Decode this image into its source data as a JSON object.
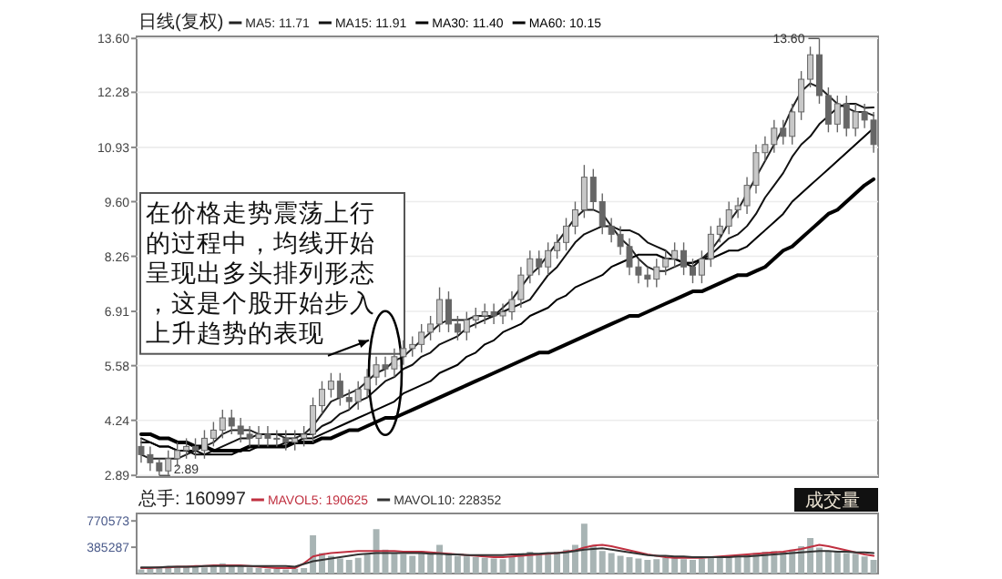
{
  "chart_data": [
    {
      "type": "candlestick",
      "title": "日线(复权)",
      "categories": [
        null,
        null,
        null,
        null,
        null,
        null,
        null,
        null,
        null,
        null,
        null,
        null,
        null,
        null,
        null,
        null,
        null,
        null,
        null,
        null,
        null,
        null,
        null,
        null,
        null,
        null,
        null,
        null,
        null,
        null,
        null,
        null,
        null,
        null,
        null,
        null,
        null,
        null,
        null,
        null,
        null,
        null,
        null,
        null,
        null,
        null,
        null,
        null,
        null,
        null,
        null,
        null,
        null,
        null,
        null,
        null,
        null,
        null,
        null,
        null,
        null,
        null,
        null,
        null,
        null,
        null,
        null,
        null,
        null,
        null,
        null,
        null,
        null,
        null,
        null,
        null,
        null,
        null,
        null,
        null,
        null,
        null
      ],
      "ylim": [
        2.85,
        13.65
      ],
      "yticks": [
        2.89,
        4.24,
        5.58,
        6.91,
        8.26,
        {
          "value": 9.6,
          "label": "9.60"
        },
        10.93,
        12.28,
        {
          "value": 13.6,
          "label": "13.60"
        }
      ],
      "grid": "y",
      "tick_labels": "y",
      "legend": "top left",
      "color": "#666666",
      "ohlc": [
        [
          3.6,
          3.8,
          3.2,
          3.4
        ],
        [
          3.4,
          3.6,
          3.0,
          3.2
        ],
        [
          3.2,
          3.3,
          2.89,
          3.0
        ],
        [
          3.0,
          3.5,
          2.9,
          3.3
        ],
        [
          3.3,
          3.7,
          3.1,
          3.5
        ],
        [
          3.5,
          3.8,
          3.3,
          3.6
        ],
        [
          3.6,
          3.8,
          3.3,
          3.5
        ],
        [
          3.5,
          4.0,
          3.3,
          3.8
        ],
        [
          3.8,
          4.2,
          3.6,
          4.0
        ],
        [
          4.0,
          4.5,
          3.8,
          4.3
        ],
        [
          4.3,
          4.5,
          3.9,
          4.1
        ],
        [
          4.1,
          4.3,
          3.7,
          3.9
        ],
        [
          3.9,
          4.1,
          3.6,
          3.8
        ],
        [
          3.8,
          4.1,
          3.6,
          3.9
        ],
        [
          3.9,
          4.1,
          3.6,
          3.8
        ],
        [
          3.8,
          4.0,
          3.6,
          3.8
        ],
        [
          3.8,
          4.0,
          3.5,
          3.7
        ],
        [
          3.7,
          4.0,
          3.5,
          3.8
        ],
        [
          3.8,
          4.1,
          3.6,
          3.9
        ],
        [
          3.9,
          4.8,
          3.7,
          4.6
        ],
        [
          4.6,
          5.2,
          4.4,
          5.0
        ],
        [
          5.0,
          5.4,
          4.8,
          5.2
        ],
        [
          5.2,
          5.4,
          4.6,
          4.8
        ],
        [
          4.8,
          5.0,
          4.5,
          4.7
        ],
        [
          4.7,
          5.2,
          4.5,
          5.0
        ],
        [
          5.0,
          5.5,
          4.8,
          5.3
        ],
        [
          5.3,
          5.8,
          5.1,
          5.6
        ],
        [
          5.6,
          5.8,
          5.3,
          5.5
        ],
        [
          5.5,
          6.0,
          5.3,
          5.8
        ],
        [
          5.8,
          6.2,
          5.6,
          6.0
        ],
        [
          6.0,
          6.3,
          5.8,
          6.1
        ],
        [
          6.1,
          6.6,
          5.9,
          6.4
        ],
        [
          6.4,
          6.8,
          6.2,
          6.6
        ],
        [
          6.6,
          7.5,
          6.4,
          7.2
        ],
        [
          7.2,
          7.4,
          6.4,
          6.6
        ],
        [
          6.6,
          6.8,
          6.2,
          6.4
        ],
        [
          6.4,
          6.9,
          6.2,
          6.7
        ],
        [
          6.7,
          7.0,
          6.5,
          6.8
        ],
        [
          6.8,
          7.1,
          6.6,
          6.9
        ],
        [
          6.9,
          7.1,
          6.6,
          6.8
        ],
        [
          6.8,
          7.1,
          6.6,
          6.9
        ],
        [
          6.9,
          7.4,
          6.7,
          7.2
        ],
        [
          7.2,
          8.0,
          7.0,
          7.8
        ],
        [
          7.8,
          8.4,
          7.6,
          8.2
        ],
        [
          8.2,
          8.4,
          7.8,
          8.0
        ],
        [
          8.0,
          8.6,
          7.8,
          8.4
        ],
        [
          8.4,
          8.8,
          8.2,
          8.6
        ],
        [
          8.6,
          9.2,
          8.4,
          9.0
        ],
        [
          9.0,
          9.6,
          8.8,
          9.4
        ],
        [
          9.4,
          10.5,
          9.2,
          10.2
        ],
        [
          10.2,
          10.4,
          9.4,
          9.6
        ],
        [
          9.6,
          9.8,
          8.8,
          9.0
        ],
        [
          9.0,
          9.2,
          8.6,
          8.8
        ],
        [
          8.8,
          9.0,
          8.3,
          8.5
        ],
        [
          8.5,
          8.7,
          7.8,
          8.0
        ],
        [
          8.0,
          8.2,
          7.6,
          7.8
        ],
        [
          7.8,
          8.0,
          7.5,
          7.7
        ],
        [
          7.7,
          8.2,
          7.5,
          8.0
        ],
        [
          8.0,
          8.4,
          7.8,
          8.2
        ],
        [
          8.2,
          8.6,
          8.0,
          8.4
        ],
        [
          8.4,
          8.6,
          7.8,
          8.0
        ],
        [
          8.0,
          8.2,
          7.6,
          7.8
        ],
        [
          7.8,
          8.4,
          7.6,
          8.2
        ],
        [
          8.2,
          9.0,
          8.0,
          8.8
        ],
        [
          8.8,
          9.2,
          8.6,
          9.0
        ],
        [
          9.0,
          9.6,
          8.8,
          9.4
        ],
        [
          9.4,
          9.7,
          9.2,
          9.5
        ],
        [
          9.5,
          10.2,
          9.3,
          10.0
        ],
        [
          10.0,
          11.0,
          9.8,
          10.8
        ],
        [
          10.8,
          11.2,
          10.6,
          11.0
        ],
        [
          11.0,
          11.6,
          10.8,
          11.4
        ],
        [
          11.4,
          11.6,
          11.0,
          11.2
        ],
        [
          11.2,
          12.0,
          11.0,
          11.8
        ],
        [
          11.8,
          12.8,
          11.6,
          12.6
        ],
        [
          12.6,
          13.4,
          12.4,
          13.2
        ],
        [
          13.2,
          13.6,
          12.0,
          12.2
        ],
        [
          12.2,
          12.4,
          11.3,
          11.5
        ],
        [
          11.5,
          12.2,
          11.3,
          12.0
        ],
        [
          12.0,
          12.2,
          11.2,
          11.4
        ],
        [
          11.4,
          12.0,
          11.2,
          11.8
        ],
        [
          11.8,
          12.0,
          11.4,
          11.6
        ],
        [
          11.6,
          11.8,
          10.8,
          11.0
        ]
      ],
      "series": [
        {
          "name": "MA5: 11.71",
          "type": "line",
          "color": "#222222",
          "values": [
            3.4,
            3.3,
            3.3,
            3.3,
            3.3,
            3.4,
            3.5,
            3.6,
            3.7,
            3.9,
            4.0,
            4.0,
            4.0,
            3.9,
            3.9,
            3.9,
            3.8,
            3.8,
            3.9,
            4.1,
            4.4,
            4.7,
            4.8,
            4.9,
            5.0,
            5.2,
            5.4,
            5.5,
            5.7,
            5.8,
            6.0,
            6.2,
            6.4,
            6.6,
            6.7,
            6.7,
            6.7,
            6.8,
            6.8,
            6.8,
            7.0,
            7.2,
            7.5,
            7.8,
            8.0,
            8.3,
            8.6,
            8.9,
            9.2,
            9.4,
            9.4,
            9.3,
            9.0,
            8.7,
            8.5,
            8.2,
            8.0,
            7.9,
            7.9,
            8.0,
            8.1,
            8.1,
            8.2,
            8.4,
            8.7,
            9.1,
            9.4,
            9.8,
            10.2,
            10.6,
            11.0,
            11.4,
            11.9,
            12.3,
            12.5,
            12.4,
            12.2,
            12.0,
            11.9,
            11.8,
            11.8,
            11.71
          ]
        },
        {
          "name": "MA15: 11.91",
          "type": "line",
          "color": "#111111",
          "values": [
            3.8,
            3.7,
            3.6,
            3.6,
            3.5,
            3.5,
            3.4,
            3.4,
            3.5,
            3.6,
            3.7,
            3.8,
            3.8,
            3.9,
            3.9,
            3.9,
            3.9,
            3.9,
            3.9,
            3.9,
            4.1,
            4.2,
            4.4,
            4.5,
            4.7,
            4.8,
            5.0,
            5.2,
            5.3,
            5.5,
            5.6,
            5.8,
            5.9,
            6.1,
            6.2,
            6.3,
            6.5,
            6.6,
            6.7,
            6.8,
            6.9,
            7.0,
            7.1,
            7.2,
            7.5,
            7.8,
            8.0,
            8.3,
            8.6,
            8.8,
            8.9,
            9.0,
            9.0,
            8.9,
            8.9,
            8.8,
            8.6,
            8.5,
            8.4,
            8.2,
            8.1,
            8.0,
            8.2,
            8.3,
            8.5,
            8.7,
            8.8,
            9.0,
            9.3,
            9.7,
            10.0,
            10.3,
            10.7,
            11.0,
            11.2,
            11.5,
            11.7,
            11.9,
            12.0,
            12.0,
            11.9,
            11.91
          ]
        },
        {
          "name": "MA30: 11.40",
          "type": "line",
          "color": "#000000",
          "values": [
            3.7,
            3.7,
            3.6,
            3.6,
            3.5,
            3.5,
            3.5,
            3.4,
            3.4,
            3.4,
            3.4,
            3.5,
            3.5,
            3.6,
            3.6,
            3.6,
            3.7,
            3.7,
            3.8,
            3.8,
            3.9,
            4.0,
            4.1,
            4.2,
            4.3,
            4.4,
            4.5,
            4.6,
            4.7,
            4.9,
            5.0,
            5.1,
            5.2,
            5.4,
            5.5,
            5.6,
            5.8,
            5.9,
            6.1,
            6.2,
            6.4,
            6.5,
            6.6,
            6.8,
            6.9,
            7.0,
            7.2,
            7.3,
            7.5,
            7.6,
            7.7,
            7.8,
            8.0,
            8.1,
            8.2,
            8.3,
            8.3,
            8.3,
            8.2,
            8.2,
            8.1,
            8.1,
            8.2,
            8.2,
            8.3,
            8.4,
            8.4,
            8.5,
            8.7,
            8.9,
            9.1,
            9.3,
            9.6,
            9.8,
            10.0,
            10.2,
            10.4,
            10.6,
            10.8,
            11.0,
            11.2,
            11.4
          ]
        },
        {
          "name": "MA60: 10.15",
          "type": "line",
          "color": "#000000",
          "values": [
            3.9,
            3.9,
            3.8,
            3.8,
            3.7,
            3.7,
            3.6,
            3.6,
            3.5,
            3.5,
            3.5,
            3.5,
            3.6,
            3.6,
            3.6,
            3.6,
            3.6,
            3.7,
            3.7,
            3.7,
            3.8,
            3.8,
            3.9,
            4.0,
            4.0,
            4.1,
            4.2,
            4.3,
            4.3,
            4.4,
            4.5,
            4.6,
            4.7,
            4.8,
            4.9,
            5.0,
            5.1,
            5.2,
            5.3,
            5.4,
            5.5,
            5.6,
            5.7,
            5.8,
            5.9,
            5.9,
            6.0,
            6.1,
            6.2,
            6.3,
            6.4,
            6.5,
            6.6,
            6.7,
            6.8,
            6.8,
            6.9,
            7.0,
            7.1,
            7.2,
            7.3,
            7.4,
            7.4,
            7.5,
            7.6,
            7.7,
            7.8,
            7.8,
            7.9,
            8.0,
            8.2,
            8.4,
            8.5,
            8.7,
            8.9,
            9.1,
            9.3,
            9.4,
            9.6,
            9.8,
            10.0,
            10.15
          ]
        }
      ],
      "annotations": [
        "13.60",
        "2.89",
        "在价格走势震荡上行的过程中，均线开始呈现出多头排列形态，这是个股开始步入上升趋势的表现"
      ]
    },
    {
      "type": "bar",
      "title": "总手: 160997",
      "categories": [
        null,
        null,
        null,
        null,
        null,
        null,
        null,
        null,
        null,
        null,
        null,
        null,
        null,
        null,
        null,
        null,
        null,
        null,
        null,
        null,
        null,
        null,
        null,
        null,
        null,
        null,
        null,
        null,
        null,
        null,
        null,
        null,
        null,
        null,
        null,
        null,
        null,
        null,
        null,
        null,
        null,
        null,
        null,
        null,
        null,
        null,
        null,
        null,
        null,
        null,
        null,
        null,
        null,
        null,
        null,
        null,
        null,
        null,
        null,
        null,
        null,
        null,
        null,
        null,
        null,
        null,
        null,
        null,
        null,
        null,
        null,
        null,
        null,
        null,
        null,
        null,
        null,
        null,
        null,
        null,
        null,
        null
      ],
      "ylim": [
        0,
        880000
      ],
      "yticks": [
        385287,
        770573
      ],
      "tick_labels": "y",
      "legend": "top left",
      "series": [
        {
          "type": "bar",
          "color": "#a8b4b4",
          "values": [
            60000,
            70000,
            80000,
            90000,
            100000,
            110000,
            100000,
            90000,
            120000,
            150000,
            130000,
            110000,
            90000,
            80000,
            70000,
            70000,
            60000,
            70000,
            80000,
            560000,
            300000,
            260000,
            220000,
            200000,
            230000,
            280000,
            650000,
            350000,
            300000,
            280000,
            260000,
            330000,
            300000,
            420000,
            300000,
            260000,
            250000,
            240000,
            230000,
            220000,
            210000,
            250000,
            300000,
            320000,
            280000,
            300000,
            320000,
            350000,
            420000,
            730000,
            400000,
            330000,
            300000,
            260000,
            240000,
            220000,
            200000,
            210000,
            230000,
            250000,
            210000,
            200000,
            220000,
            240000,
            230000,
            250000,
            260000,
            280000,
            300000,
            320000,
            330000,
            320000,
            350000,
            400000,
            520000,
            380000,
            330000,
            320000,
            300000,
            290000,
            250000,
            200000
          ]
        },
        {
          "name": "MAVOL5: 190625",
          "type": "line",
          "color": "#c03040",
          "values": [
            80000,
            80000,
            90000,
            90000,
            100000,
            100000,
            110000,
            110000,
            120000,
            120000,
            120000,
            120000,
            110000,
            100000,
            90000,
            80000,
            80000,
            80000,
            150000,
            250000,
            280000,
            300000,
            310000,
            320000,
            330000,
            330000,
            330000,
            330000,
            330000,
            320000,
            320000,
            320000,
            310000,
            300000,
            290000,
            280000,
            270000,
            260000,
            250000,
            240000,
            240000,
            250000,
            260000,
            270000,
            280000,
            290000,
            300000,
            320000,
            340000,
            380000,
            410000,
            420000,
            400000,
            370000,
            340000,
            310000,
            280000,
            260000,
            240000,
            230000,
            230000,
            230000,
            230000,
            240000,
            250000,
            260000,
            270000,
            280000,
            290000,
            300000,
            310000,
            320000,
            340000,
            360000,
            390000,
            420000,
            400000,
            370000,
            340000,
            310000,
            280000,
            260000
          ]
        },
        {
          "name": "MAVOL10: 228352",
          "type": "line",
          "color": "#333333",
          "values": [
            90000,
            90000,
            90000,
            100000,
            100000,
            100000,
            100000,
            110000,
            110000,
            110000,
            110000,
            110000,
            110000,
            110000,
            110000,
            110000,
            110000,
            100000,
            140000,
            180000,
            200000,
            220000,
            240000,
            260000,
            280000,
            290000,
            300000,
            300000,
            300000,
            300000,
            300000,
            300000,
            290000,
            290000,
            280000,
            280000,
            270000,
            270000,
            270000,
            270000,
            270000,
            280000,
            280000,
            290000,
            290000,
            300000,
            300000,
            310000,
            330000,
            350000,
            360000,
            370000,
            350000,
            330000,
            310000,
            290000,
            270000,
            260000,
            260000,
            250000,
            250000,
            240000,
            240000,
            240000,
            240000,
            240000,
            250000,
            250000,
            260000,
            270000,
            280000,
            290000,
            300000,
            310000,
            320000,
            330000,
            330000,
            320000,
            320000,
            310000,
            310000,
            300000
          ]
        }
      ],
      "annotations": [
        "成交量"
      ]
    }
  ]
}
